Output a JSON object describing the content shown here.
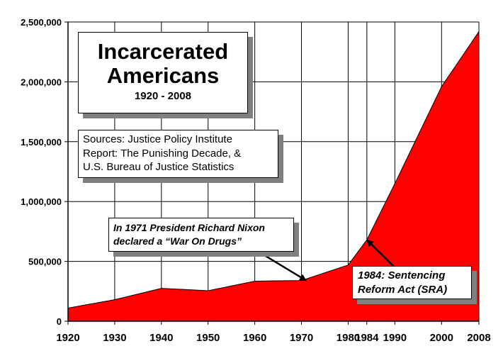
{
  "chart_data": {
    "type": "area",
    "title": "Incarcerated Americans",
    "subtitle": "1920 - 2008",
    "x": [
      1920,
      1930,
      1940,
      1950,
      1960,
      1970,
      1980,
      1984,
      1990,
      2000,
      2008
    ],
    "x_tick_labels": [
      "1920",
      "1930",
      "1940",
      "1950",
      "1960",
      "1970",
      "1980",
      "1984",
      "1990",
      "2000",
      "2008"
    ],
    "series": [
      {
        "values": [
          110000,
          180000,
          275000,
          255000,
          335000,
          340000,
          470000,
          680000,
          1150000,
          1960000,
          2420000
        ]
      }
    ],
    "ylim": [
      0,
      2500000
    ],
    "y_ticks": [
      0,
      500000,
      1000000,
      1500000,
      2000000,
      2500000
    ],
    "y_tick_labels": [
      "0",
      "500,000",
      "1,000,000",
      "1,500,000",
      "2,000,000",
      "2,500,000"
    ],
    "xlabel": "",
    "ylabel": "",
    "grid": true,
    "colors": {
      "fill": "#ff0000",
      "grid": "#000000"
    },
    "annotations": {
      "sources": [
        "Sources: Justice Policy Institute",
        "Report: The Punishing Decade, &",
        "U.S. Bureau of Justice Statistics"
      ],
      "nixon": [
        "In 1971 President Richard Nixon",
        "declared a “War On Drugs”"
      ],
      "sra": [
        "1984: Sentencing",
        "Reform Act (SRA)"
      ]
    },
    "arrows": [
      {
        "label": "nixon",
        "to_x": 1971,
        "to_y": 340000
      },
      {
        "label": "sra",
        "to_x": 1984,
        "to_y": 680000
      }
    ]
  }
}
